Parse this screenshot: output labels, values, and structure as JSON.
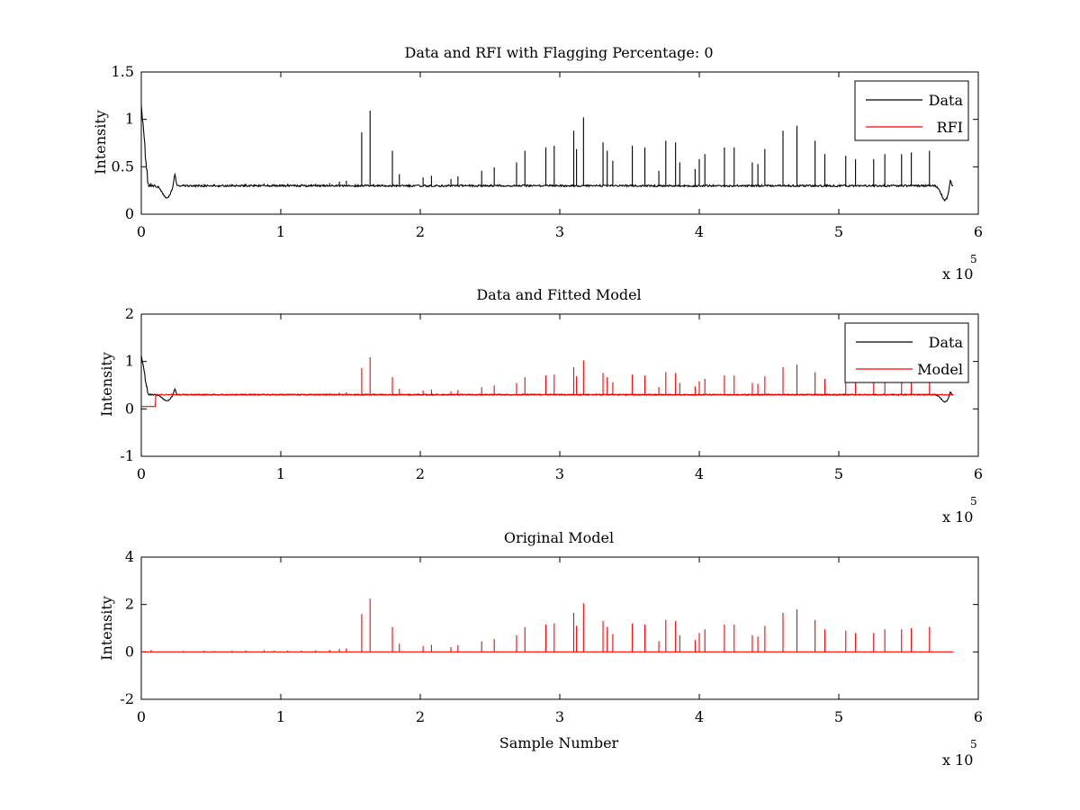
{
  "chart_data": [
    {
      "type": "line",
      "title": "Data and RFI with Flagging Percentage: 0",
      "xlabel": "",
      "ylabel": "Intensity",
      "xlim": [
        0,
        6
      ],
      "ylim": [
        0,
        1.5
      ],
      "xticks": [
        "0",
        "1",
        "2",
        "3",
        "4",
        "5",
        "6"
      ],
      "yticks": [
        "0",
        "0.5",
        "1",
        "1.5"
      ],
      "x_multiplier_base": "x 10",
      "x_multiplier_exp": "5",
      "legend": {
        "position": "top-right",
        "entries": [
          "Data",
          "RFI"
        ]
      },
      "series": [
        {
          "name": "Data",
          "color": "#000000",
          "baseline": 0.3,
          "dips": true,
          "spike_scale": 0.22,
          "start_peak": 1.12
        },
        {
          "name": "RFI",
          "color": "#ff0000",
          "hidden": true
        }
      ]
    },
    {
      "type": "line",
      "title": "Data and Fitted Model",
      "xlabel": "",
      "ylabel": "Intensity",
      "xlim": [
        0,
        6
      ],
      "ylim": [
        -1,
        2
      ],
      "xticks": [
        "0",
        "1",
        "2",
        "3",
        "4",
        "5",
        "6"
      ],
      "yticks": [
        "-1",
        "0",
        "1",
        "2"
      ],
      "x_multiplier_base": "x 10",
      "x_multiplier_exp": "5",
      "legend": {
        "position": "top-right",
        "entries": [
          "Data",
          "Model"
        ]
      },
      "series": [
        {
          "name": "Data",
          "color": "#000000",
          "baseline": 0.3,
          "dips": true,
          "spike_scale": 0.0,
          "start_peak": 1.1
        },
        {
          "name": "Model",
          "color": "#ff0000",
          "baseline": 0.3,
          "dips": false,
          "spike_scale": 0.22,
          "start_low": 0.05
        }
      ]
    },
    {
      "type": "line",
      "title": "Original Model",
      "xlabel": "Sample Number",
      "ylabel": "Intensity",
      "xlim": [
        0,
        6
      ],
      "ylim": [
        -2,
        4
      ],
      "xticks": [
        "0",
        "1",
        "2",
        "3",
        "4",
        "5",
        "6"
      ],
      "yticks": [
        "-2",
        "0",
        "2",
        "4"
      ],
      "x_multiplier_base": "x 10",
      "x_multiplier_exp": "5",
      "series": [
        {
          "name": "",
          "color": "#ff0000",
          "baseline": 0.0,
          "dips": false,
          "spike_scale": 1.0
        }
      ]
    }
  ],
  "spikes": [
    [
      0.07,
      0.08
    ],
    [
      0.3,
      0.04
    ],
    [
      0.45,
      0.05
    ],
    [
      0.52,
      0.04
    ],
    [
      0.65,
      0.05
    ],
    [
      0.75,
      0.06
    ],
    [
      0.88,
      0.07
    ],
    [
      0.95,
      0.05
    ],
    [
      1.05,
      0.06
    ],
    [
      1.15,
      0.05
    ],
    [
      1.25,
      0.06
    ],
    [
      1.35,
      0.08
    ],
    [
      1.42,
      0.12
    ],
    [
      1.47,
      0.15
    ],
    [
      1.58,
      1.6
    ],
    [
      1.64,
      2.25
    ],
    [
      1.8,
      1.05
    ],
    [
      1.85,
      0.35
    ],
    [
      2.02,
      0.25
    ],
    [
      2.08,
      0.3
    ],
    [
      2.22,
      0.2
    ],
    [
      2.27,
      0.28
    ],
    [
      2.44,
      0.45
    ],
    [
      2.53,
      0.55
    ],
    [
      2.69,
      0.7
    ],
    [
      2.75,
      1.05
    ],
    [
      2.9,
      1.15
    ],
    [
      2.96,
      1.2
    ],
    [
      3.1,
      1.65
    ],
    [
      3.12,
      1.1
    ],
    [
      3.17,
      2.05
    ],
    [
      3.31,
      1.3
    ],
    [
      3.34,
      1.05
    ],
    [
      3.38,
      0.75
    ],
    [
      3.52,
      1.2
    ],
    [
      3.61,
      1.15
    ],
    [
      3.71,
      0.45
    ],
    [
      3.76,
      1.35
    ],
    [
      3.83,
      1.3
    ],
    [
      3.86,
      0.7
    ],
    [
      3.97,
      0.5
    ],
    [
      4.0,
      0.8
    ],
    [
      4.04,
      0.95
    ],
    [
      4.18,
      1.15
    ],
    [
      4.25,
      1.15
    ],
    [
      4.38,
      0.7
    ],
    [
      4.42,
      0.65
    ],
    [
      4.47,
      1.1
    ],
    [
      4.6,
      1.65
    ],
    [
      4.7,
      1.8
    ],
    [
      4.83,
      1.35
    ],
    [
      4.9,
      0.95
    ],
    [
      5.05,
      0.9
    ],
    [
      5.12,
      0.8
    ],
    [
      5.25,
      0.8
    ],
    [
      5.33,
      0.95
    ],
    [
      5.45,
      0.95
    ],
    [
      5.52,
      1.0
    ],
    [
      5.65,
      1.05
    ]
  ],
  "dips": [
    {
      "x": 0.18,
      "depth": 0.13,
      "width": 0.04,
      "bump_x": 0.24,
      "bump_h": 0.13
    },
    {
      "x": 5.76,
      "depth": 0.15,
      "width": 0.035,
      "bump_x": 5.8,
      "bump_h": 0.1
    }
  ]
}
